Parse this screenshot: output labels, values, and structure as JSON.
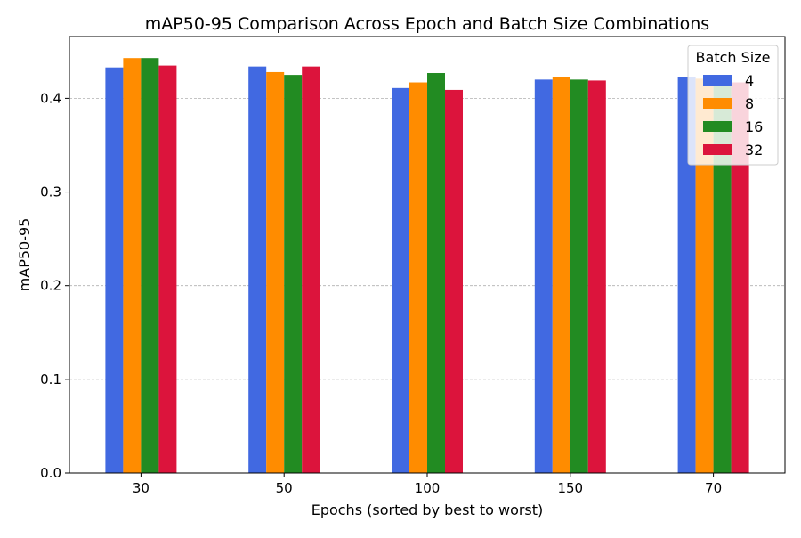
{
  "chart_data": {
    "type": "bar",
    "title": "mAP50-95 Comparison Across Epoch and Batch Size Combinations",
    "xlabel": "Epochs (sorted by best to worst)",
    "ylabel": "mAP50-95",
    "categories": [
      "30",
      "50",
      "100",
      "150",
      "70"
    ],
    "ylim": [
      0,
      0.466
    ],
    "yticks": [
      0.0,
      0.1,
      0.2,
      0.3,
      0.4
    ],
    "ytick_labels": [
      "0.0",
      "0.1",
      "0.2",
      "0.3",
      "0.4"
    ],
    "grid": "y-axis dashed",
    "legend": {
      "title": "Batch Size",
      "placement": "top-right"
    },
    "series": [
      {
        "name": "4",
        "color": "#4169e1",
        "values": [
          0.433,
          0.434,
          0.411,
          0.42,
          0.423
        ]
      },
      {
        "name": "8",
        "color": "#ff8c00",
        "values": [
          0.443,
          0.428,
          0.417,
          0.423,
          0.421
        ]
      },
      {
        "name": "16",
        "color": "#228b22",
        "values": [
          0.443,
          0.425,
          0.427,
          0.42,
          0.42
        ]
      },
      {
        "name": "32",
        "color": "#dc143c",
        "values": [
          0.435,
          0.434,
          0.409,
          0.419,
          0.417
        ]
      }
    ]
  }
}
